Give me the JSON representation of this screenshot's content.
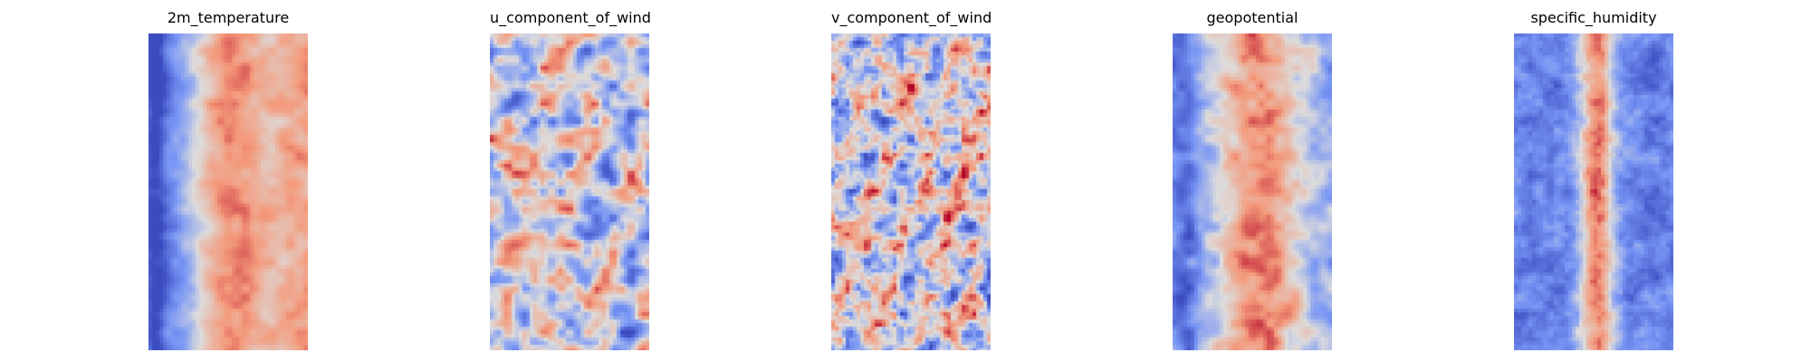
{
  "chart_data": [
    {
      "type": "heatmap",
      "title": "2m_temperature",
      "colormap": "coolwarm",
      "axes": "off",
      "grid": false,
      "legend": "none",
      "description_profile": "cold-left-band",
      "seed": 11
    },
    {
      "type": "heatmap",
      "title": "u_component_of_wind",
      "colormap": "coolwarm",
      "axes": "off",
      "grid": false,
      "legend": "none",
      "description_profile": "turbulent-mixed",
      "seed": 23
    },
    {
      "type": "heatmap",
      "title": "v_component_of_wind",
      "colormap": "coolwarm",
      "axes": "off",
      "grid": false,
      "legend": "none",
      "description_profile": "eddy-mixed",
      "seed": 37
    },
    {
      "type": "heatmap",
      "title": "geopotential",
      "colormap": "coolwarm",
      "axes": "off",
      "grid": false,
      "legend": "none",
      "description_profile": "warm-center-cold-left",
      "seed": 41
    },
    {
      "type": "heatmap",
      "title": "specific_humidity",
      "colormap": "coolwarm",
      "axes": "off",
      "grid": false,
      "legend": "none",
      "description_profile": "warm-spine-cold-background",
      "seed": 59
    }
  ],
  "colors": {
    "cold": "#3b4cc0",
    "neutral": "#dddcdc",
    "warm": "#b40426"
  }
}
